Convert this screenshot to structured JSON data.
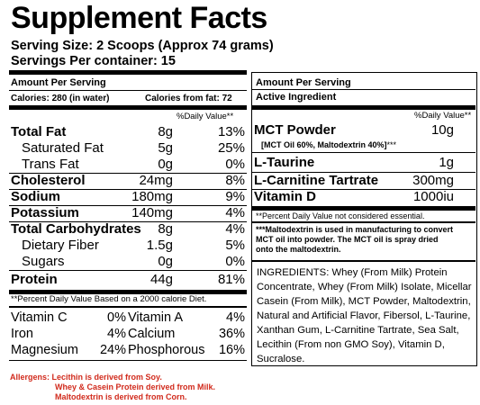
{
  "title": "Supplement Facts",
  "serving_size": "Serving Size: 2 Scoops (Approx 74 grams)",
  "servings_per_container": "Servings Per container: 15",
  "left": {
    "amount_per_serving": "Amount Per Serving",
    "calories": "Calories:  280 (in water)",
    "calories_from_fat": "Calories from fat: 72",
    "dv_header": "%Daily Value**",
    "nutrients": [
      {
        "name": "Total Fat",
        "amount": "8g",
        "pct": "13%"
      },
      {
        "name": "Saturated Fat",
        "amount": "5g",
        "pct": "25%"
      },
      {
        "name": "Trans Fat",
        "amount": "0g",
        "pct": "0%"
      },
      {
        "name": "Cholesterol",
        "amount": "24mg",
        "pct": "8%"
      },
      {
        "name": "Sodium",
        "amount": "180mg",
        "pct": "9%"
      },
      {
        "name": "Potassium",
        "amount": "140mg",
        "pct": "4%"
      },
      {
        "name": "Total Carbohydrates",
        "amount": "8g",
        "pct": "4%"
      },
      {
        "name": "Dietary Fiber",
        "amount": "1.5g",
        "pct": "5%"
      },
      {
        "name": "Sugars",
        "amount": "0g",
        "pct": "0%"
      },
      {
        "name": "Protein",
        "amount": "44g",
        "pct": "81%"
      }
    ],
    "footnote": "**Percent Daily Value Based on a 2000 calorie Diet.",
    "vitamins": [
      {
        "n1": "Vitamin C",
        "p1": "0%",
        "n2": "Vitamin A",
        "p2": "4%"
      },
      {
        "n1": "Iron",
        "p1": "4%",
        "n2": "Calcium",
        "p2": "36%"
      },
      {
        "n1": "Magnesium",
        "p1": "24%",
        "n2": "Phosphorous",
        "p2": "16%"
      }
    ]
  },
  "right": {
    "amount_per_serving": "Amount Per Serving",
    "active_ingredient": "Active Ingredient",
    "dv_header": "%Daily Value**",
    "ingredients_list": [
      {
        "name": "MCT Powder",
        "amount": "10g"
      },
      {
        "name": "L-Taurine",
        "amount": "1g"
      },
      {
        "name": "L-Carnitine Tartrate",
        "amount": "300mg"
      },
      {
        "name": "Vitamin D",
        "amount": "1000iu"
      }
    ],
    "mct_note": "[MCT Oil 60%, Maltodextrin 40%]",
    "mct_stars": "***",
    "dv_note": "**Percent Daily Value not considered essential.",
    "malto_note_1": "***Maltodextrin is used in manufacturing to convert",
    "malto_note_2": "MCT oil into powder.  The MCT oil is spray dried",
    "malto_note_3": "onto the maltodextrin.",
    "ingredients_text": "INGREDIENTS: Whey (From Milk) Protein Concentrate, Whey (From Milk) Isolate, Micellar Casein (From Milk), MCT Powder, Maltodextrin, Natural and Artificial Flavor, Fibersol, L-Taurine, Xanthan Gum, L-Carnitine Tartrate, Sea Salt, Lecithin (From non GMO Soy), Vitamin D, Sucralose."
  },
  "allergens": {
    "line1": "Allergens: Lecithin is derived from Soy.",
    "line2": "Whey & Casein Protein derived from Milk.",
    "line3": "Maltodextrin is derived from Corn.",
    "color": "#d12a1c"
  }
}
